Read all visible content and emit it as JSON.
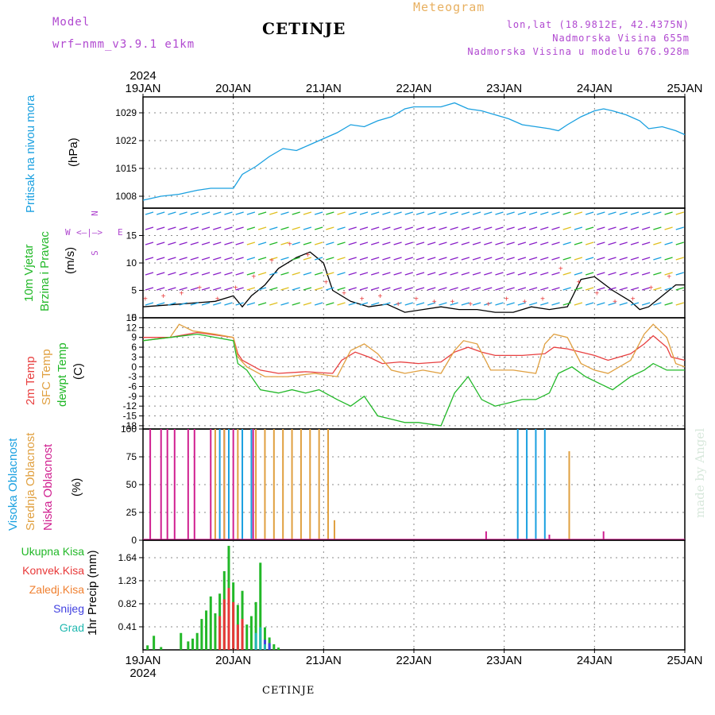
{
  "header": {
    "model_label": "Model",
    "model_name": "wrf−nmm_v3.9.1  e1km",
    "title": "CETINJE",
    "meteogram": "Meteogram",
    "lonlat": "lon,lat (18.9812E, 42.4375N)",
    "altitude": "Nadmorska Visina 655m",
    "model_altitude": "Nadmorska Visina u modelu 676.928m"
  },
  "time_axis": {
    "year": "2024",
    "labels": [
      "19JAN",
      "20JAN",
      "21JAN",
      "22JAN",
      "23JAN",
      "24JAN",
      "25JAN"
    ]
  },
  "panels": {
    "pressure": {
      "label": "Pritisak na nivou mora",
      "unit": "(hPa)",
      "color": "#1aa0e0"
    },
    "wind": {
      "label1": "10m Vjetar",
      "label2": "Brzina i Pravac",
      "unit": "(m/s)",
      "compass": {
        "n": "N",
        "w": "W",
        "e": "E",
        "s": "S"
      }
    },
    "temp": {
      "label_2m": "2m Temp",
      "label_sfc": "SFC Temp",
      "label_dew": "dewpt Temp",
      "unit": "(C)"
    },
    "cloud": {
      "label_high": "Visoka Oblacnost",
      "label_mid": "Srednja Oblacnost",
      "label_low": "Niska Oblacnost",
      "unit": "(%)"
    },
    "precip": {
      "unit_label": "1hr Precip (mm)",
      "legend": [
        {
          "label": "Ukupna Kisa",
          "color": "#22b828"
        },
        {
          "label": "Konvek.Kisa",
          "color": "#e83838"
        },
        {
          "label": "Zaledj.Kisa",
          "color": "#f08030"
        },
        {
          "label": "Snijeg",
          "color": "#4040e0"
        },
        {
          "label": "Grad",
          "color": "#20b8b0"
        }
      ]
    }
  },
  "signature": "made by Angel",
  "footer": "CETINJE",
  "chart_data": [
    {
      "type": "line",
      "panel": "pressure",
      "ylabel": "(hPa)",
      "yticks": [
        1008,
        1015,
        1022,
        1029
      ],
      "ylim": [
        1005,
        1033
      ],
      "x_unit": "days since 19JAN 00UTC",
      "series": [
        {
          "color": "#1aa0e0",
          "x": [
            0,
            0.2,
            0.4,
            0.6,
            0.75,
            0.9,
            1.0,
            1.1,
            1.25,
            1.4,
            1.55,
            1.7,
            1.85,
            2.0,
            2.15,
            2.3,
            2.45,
            2.6,
            2.75,
            2.9,
            3.0,
            3.15,
            3.3,
            3.45,
            3.6,
            3.75,
            3.9,
            4.05,
            4.2,
            4.35,
            4.5,
            4.6,
            4.7,
            4.85,
            5.0,
            5.1,
            5.2,
            5.35,
            5.5,
            5.6,
            5.75,
            5.9,
            6.0
          ],
          "values": [
            1007,
            1008,
            1008.5,
            1009.5,
            1010,
            1010,
            1010,
            1013.5,
            1015.5,
            1018,
            1020,
            1019.5,
            1021,
            1022.5,
            1024,
            1026,
            1025.5,
            1027,
            1028,
            1030,
            1030.5,
            1030.5,
            1030.5,
            1031.5,
            1030,
            1029.5,
            1028.5,
            1027.5,
            1026,
            1025.5,
            1025,
            1024.5,
            1026,
            1028,
            1029.5,
            1030,
            1029.5,
            1028.5,
            1027,
            1025,
            1025.5,
            1024.5,
            1023.5
          ]
        }
      ]
    },
    {
      "type": "line",
      "panel": "wind",
      "ylabel": "(m/s)",
      "yticks": [
        0,
        5,
        10,
        15
      ],
      "ylim": [
        0,
        20
      ],
      "series": [
        {
          "name": "speed",
          "color": "#000000",
          "x": [
            0,
            0.4,
            0.8,
            1.0,
            1.1,
            1.2,
            1.35,
            1.5,
            1.7,
            1.85,
            2.0,
            2.1,
            2.3,
            2.5,
            2.7,
            2.9,
            3.1,
            3.3,
            3.5,
            3.7,
            3.9,
            4.1,
            4.3,
            4.5,
            4.7,
            4.85,
            5.0,
            5.2,
            5.4,
            5.5,
            5.6,
            5.75,
            5.9,
            6.0
          ],
          "values": [
            2,
            2.5,
            3,
            4,
            2,
            4,
            6,
            9,
            11,
            12,
            10,
            5,
            3,
            2,
            2.5,
            1,
            1.5,
            2,
            1.5,
            1.5,
            1,
            1,
            2,
            1.5,
            2,
            7,
            7.5,
            5,
            3,
            1.5,
            2,
            4,
            6,
            6
          ]
        }
      ]
    },
    {
      "type": "line",
      "panel": "temp",
      "ylabel": "(C)",
      "yticks": [
        -18,
        -15,
        -12,
        -9,
        -6,
        -3,
        0,
        3,
        6,
        9,
        12,
        15
      ],
      "ylim": [
        -19,
        15
      ],
      "series": [
        {
          "name": "2m Temp",
          "color": "#e84040",
          "x": [
            0,
            0.3,
            0.6,
            1.0,
            1.05,
            1.1,
            1.3,
            1.5,
            1.8,
            2.1,
            2.2,
            2.35,
            2.5,
            2.65,
            2.85,
            3.05,
            3.3,
            3.45,
            3.6,
            3.75,
            3.9,
            4.2,
            4.45,
            4.55,
            4.7,
            4.85,
            5.0,
            5.15,
            5.4,
            5.55,
            5.65,
            5.8,
            5.85,
            6.0
          ],
          "values": [
            9,
            9,
            10.5,
            9,
            4,
            2,
            -1,
            -2,
            -1.5,
            -2,
            2,
            4.5,
            3,
            1,
            1.5,
            1,
            1.5,
            4.5,
            6,
            4.5,
            3.5,
            3.5,
            4,
            6,
            5.5,
            4.5,
            3.5,
            2,
            4,
            7,
            9.5,
            6,
            3,
            2
          ]
        },
        {
          "name": "SFC Temp",
          "color": "#e0a040",
          "x": [
            0,
            0.3,
            0.4,
            0.55,
            0.8,
            1.0,
            1.05,
            1.15,
            1.35,
            1.6,
            1.9,
            2.15,
            2.3,
            2.45,
            2.6,
            2.75,
            2.9,
            3.1,
            3.3,
            3.45,
            3.55,
            3.7,
            3.85,
            4.1,
            4.35,
            4.45,
            4.55,
            4.7,
            4.85,
            5.0,
            5.15,
            5.4,
            5.55,
            5.65,
            5.8,
            5.9,
            6.0
          ],
          "values": [
            8,
            9,
            13,
            11,
            10,
            9,
            3,
            0,
            -3,
            -3,
            -2,
            -3,
            5,
            7,
            4,
            -1,
            -2,
            -1,
            -2,
            5,
            8,
            7,
            -1,
            -1,
            -2,
            7,
            10,
            9,
            1,
            -1,
            -2,
            2,
            10,
            13,
            9,
            1,
            0
          ]
        },
        {
          "name": "dewpt Temp",
          "color": "#22b828",
          "x": [
            0,
            0.3,
            0.6,
            1.0,
            1.05,
            1.15,
            1.3,
            1.5,
            1.65,
            1.8,
            1.95,
            2.15,
            2.3,
            2.45,
            2.6,
            2.75,
            2.9,
            3.05,
            3.3,
            3.45,
            3.6,
            3.75,
            3.9,
            4.05,
            4.2,
            4.35,
            4.5,
            4.6,
            4.75,
            4.9,
            5.05,
            5.2,
            5.4,
            5.55,
            5.65,
            5.8,
            6.0
          ],
          "values": [
            8,
            9,
            10,
            8,
            1,
            -1,
            -7,
            -8,
            -7,
            -8,
            -7,
            -10,
            -12,
            -9,
            -15,
            -16,
            -17,
            -17,
            -18,
            -8,
            -3,
            -10,
            -12,
            -11,
            -10,
            -10,
            -8,
            -2,
            0,
            -3,
            -5,
            -7,
            -3,
            -1,
            1,
            -1,
            -1
          ]
        }
      ]
    },
    {
      "type": "bar",
      "panel": "cloud",
      "ylabel": "(%)",
      "yticks": [
        0,
        25,
        50,
        75,
        100
      ],
      "ylim": [
        0,
        100
      ],
      "series": [
        {
          "name": "Niska Oblacnost",
          "color": "#d02090",
          "x": [
            0.08,
            0.2,
            0.27,
            0.35,
            0.5,
            0.57,
            0.75,
            0.9,
            1.0,
            1.22,
            3.8,
            4.5,
            5.1
          ],
          "values": [
            100,
            100,
            100,
            100,
            100,
            100,
            100,
            100,
            100,
            100,
            8,
            5,
            8
          ]
        },
        {
          "name": "Srednja Oblacnost",
          "color": "#e0a040",
          "x": [
            0.8,
            0.9,
            1.05,
            1.25,
            1.35,
            1.45,
            1.55,
            1.65,
            1.75,
            1.85,
            1.95,
            2.05,
            2.12,
            4.72
          ],
          "values": [
            100,
            100,
            100,
            100,
            100,
            100,
            100,
            100,
            100,
            100,
            100,
            100,
            18,
            80
          ]
        },
        {
          "name": "Visoka Oblacnost",
          "color": "#1aa0e0",
          "x": [
            0.85,
            0.95,
            1.1,
            1.2,
            4.15,
            4.25,
            4.35,
            4.45
          ],
          "values": [
            100,
            100,
            100,
            100,
            100,
            100,
            100,
            100
          ]
        }
      ]
    },
    {
      "type": "bar",
      "panel": "precip",
      "ylabel": "1hr Precip (mm)",
      "yticks": [
        0.41,
        0.82,
        1.23,
        1.64
      ],
      "ylim": [
        0,
        1.95
      ],
      "series": [
        {
          "name": "Ukupna Kisa",
          "color": "#22b828",
          "x": [
            0.05,
            0.12,
            0.2,
            0.42,
            0.5,
            0.55,
            0.6,
            0.65,
            0.7,
            0.75,
            0.8,
            0.85,
            0.9,
            0.95,
            1.0,
            1.05,
            1.1,
            1.15,
            1.2,
            1.25,
            1.3,
            1.35,
            1.4,
            1.45,
            1.5
          ],
          "values": [
            0.08,
            0.25,
            0.05,
            0.3,
            0.15,
            0.2,
            0.3,
            0.55,
            0.7,
            0.95,
            0.65,
            1.0,
            1.4,
            1.85,
            1.2,
            0.8,
            1.05,
            0.45,
            0.6,
            0.85,
            1.55,
            0.4,
            0.22,
            0.1,
            0.04
          ]
        },
        {
          "name": "Konvek.Kisa",
          "color": "#e83838",
          "x": [
            0.85,
            0.9,
            0.95,
            1.0,
            1.05,
            1.1
          ],
          "values": [
            0.6,
            0.9,
            1.1,
            0.85,
            0.45,
            0.55
          ]
        },
        {
          "name": "Snijeg",
          "color": "#4040e0",
          "x": [
            1.35,
            1.4
          ],
          "values": [
            0.18,
            0.12
          ]
        },
        {
          "name": "Grad",
          "color": "#20b8b0",
          "x": [
            1.25,
            1.3,
            1.35
          ],
          "values": [
            0.3,
            0.4,
            0.1
          ]
        }
      ]
    }
  ]
}
